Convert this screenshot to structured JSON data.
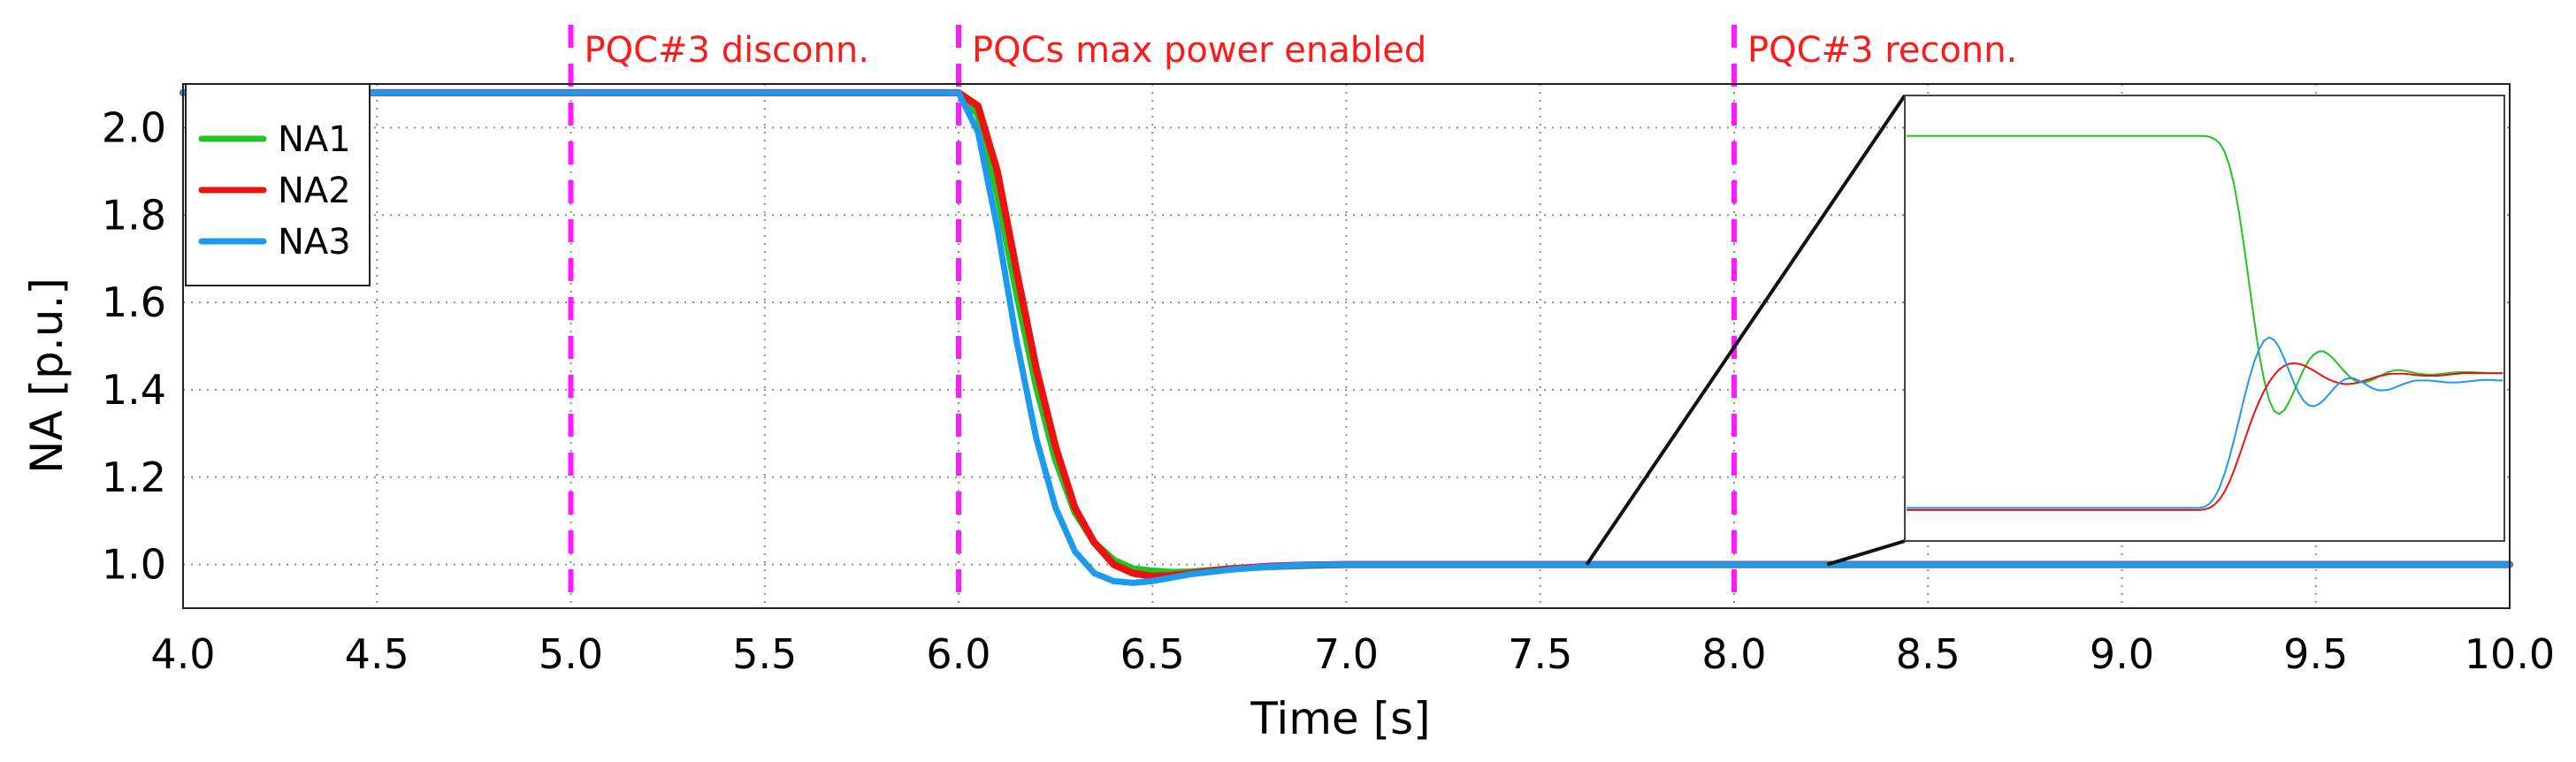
{
  "chart_data": {
    "type": "line",
    "title": "",
    "xlabel": "Time [s]",
    "ylabel": "NA [p.u.]",
    "xlim": [
      4.0,
      10.0
    ],
    "ylim": [
      0.9,
      2.1
    ],
    "x_ticks": [
      "4.0",
      "4.5",
      "5.0",
      "5.5",
      "6.0",
      "6.5",
      "7.0",
      "7.5",
      "8.0",
      "8.5",
      "9.0",
      "9.5",
      "10.0"
    ],
    "y_ticks": [
      "1.0",
      "1.2",
      "1.4",
      "1.6",
      "1.8",
      "2.0"
    ],
    "grid": true,
    "legend": {
      "position": "top-left",
      "entries": [
        "NA1",
        "NA2",
        "NA3"
      ]
    },
    "series": [
      {
        "name": "NA1",
        "color": "#22c422",
        "x": [
          4.0,
          5.0,
          6.0,
          6.05,
          6.1,
          6.15,
          6.2,
          6.25,
          6.3,
          6.35,
          6.4,
          6.45,
          6.5,
          6.55,
          6.6,
          6.7,
          6.8,
          6.9,
          7.0,
          8.0,
          9.0,
          10.0
        ],
        "values": [
          2.08,
          2.08,
          2.08,
          2.03,
          1.85,
          1.62,
          1.41,
          1.24,
          1.12,
          1.05,
          1.01,
          0.99,
          0.985,
          0.982,
          0.983,
          0.99,
          0.995,
          0.998,
          1.0,
          1.0,
          1.0,
          1.0
        ]
      },
      {
        "name": "NA2",
        "color": "#ee1111",
        "x": [
          4.0,
          5.0,
          6.0,
          6.05,
          6.1,
          6.15,
          6.2,
          6.25,
          6.3,
          6.35,
          6.4,
          6.45,
          6.5,
          6.55,
          6.6,
          6.7,
          6.8,
          6.9,
          7.0,
          8.0,
          9.0,
          10.0
        ],
        "values": [
          2.08,
          2.08,
          2.08,
          2.05,
          1.9,
          1.67,
          1.45,
          1.27,
          1.13,
          1.05,
          1.0,
          0.98,
          0.973,
          0.975,
          0.98,
          0.99,
          0.996,
          0.999,
          1.0,
          1.0,
          1.0,
          1.0
        ]
      },
      {
        "name": "NA3",
        "color": "#1b9af0",
        "x": [
          4.0,
          5.0,
          6.0,
          6.05,
          6.1,
          6.15,
          6.2,
          6.25,
          6.3,
          6.35,
          6.4,
          6.45,
          6.5,
          6.55,
          6.6,
          6.7,
          6.8,
          6.9,
          7.0,
          8.0,
          9.0,
          10.0
        ],
        "values": [
          2.08,
          2.08,
          2.08,
          1.99,
          1.77,
          1.51,
          1.29,
          1.13,
          1.03,
          0.98,
          0.962,
          0.958,
          0.962,
          0.97,
          0.978,
          0.988,
          0.995,
          0.999,
          1.0,
          1.0,
          1.0,
          1.0
        ]
      }
    ],
    "vertical_markers": [
      {
        "x": 5.0,
        "label": "PQC#3 disconn.",
        "color": "#ff1aff"
      },
      {
        "x": 6.0,
        "label": "PQCs max power enabled",
        "color": "#ff1aff"
      },
      {
        "x": 8.0,
        "label": "PQC#3 reconn.",
        "color": "#ff1aff"
      }
    ],
    "inset": {
      "description_series": [
        {
          "name": "NA1",
          "color": "#22c422",
          "values": [
            1.942,
            1.942,
            1.942,
            1.942,
            1.942,
            1.942,
            1.942,
            1.942,
            1.942,
            1.942,
            1.942,
            1.942,
            1.942,
            1.942,
            1.942,
            1.942,
            1.942,
            1.942,
            1.942,
            1.942,
            1.942,
            1.942,
            1.942,
            1.942,
            1.942,
            1.942,
            1.942,
            1.942,
            1.942,
            1.942,
            1.942,
            1.942,
            1.942,
            1.942,
            1.942,
            1.942,
            1.942,
            1.942,
            1.942,
            1.942,
            1.942,
            1.942,
            1.942,
            1.942,
            1.942,
            1.942,
            1.942,
            1.942,
            1.942,
            1.942,
            1.942,
            1.942,
            1.942,
            1.942,
            1.942,
            1.942,
            1.942,
            1.942,
            1.942,
            1.942,
            1.942,
            1.94,
            1.936,
            1.928,
            1.912,
            1.885,
            1.845,
            1.79,
            1.725,
            1.655,
            1.585,
            1.52,
            1.47,
            1.432,
            1.411,
            1.405,
            1.412,
            1.428,
            1.449,
            1.471,
            1.492,
            1.509,
            1.52,
            1.526,
            1.526,
            1.52,
            1.511,
            1.5,
            1.489,
            1.479,
            1.471,
            1.467,
            1.466,
            1.468,
            1.472,
            1.477,
            1.482,
            1.486,
            1.489,
            1.49,
            1.489,
            1.487,
            1.485,
            1.483,
            1.482,
            1.481,
            1.481,
            1.482,
            1.483,
            1.484,
            1.485,
            1.486,
            1.486,
            1.486,
            1.486,
            1.485,
            1.485,
            1.484,
            1.484,
            1.484,
            1.484
          ]
        },
        {
          "name": "NA2",
          "color": "#ee1111",
          "values": [
            1.22,
            1.22,
            1.22,
            1.22,
            1.22,
            1.22,
            1.22,
            1.22,
            1.22,
            1.22,
            1.22,
            1.22,
            1.22,
            1.22,
            1.22,
            1.22,
            1.22,
            1.22,
            1.22,
            1.22,
            1.22,
            1.22,
            1.22,
            1.22,
            1.22,
            1.22,
            1.22,
            1.22,
            1.22,
            1.22,
            1.22,
            1.22,
            1.22,
            1.22,
            1.22,
            1.22,
            1.22,
            1.22,
            1.22,
            1.22,
            1.22,
            1.22,
            1.22,
            1.22,
            1.22,
            1.22,
            1.22,
            1.22,
            1.22,
            1.22,
            1.22,
            1.22,
            1.22,
            1.22,
            1.22,
            1.22,
            1.22,
            1.22,
            1.22,
            1.22,
            1.221,
            1.224,
            1.23,
            1.24,
            1.255,
            1.274,
            1.298,
            1.325,
            1.353,
            1.381,
            1.407,
            1.43,
            1.45,
            1.467,
            1.48,
            1.491,
            1.498,
            1.502,
            1.503,
            1.502,
            1.499,
            1.494,
            1.489,
            1.483,
            1.477,
            1.472,
            1.468,
            1.465,
            1.463,
            1.463,
            1.464,
            1.466,
            1.469,
            1.472,
            1.475,
            1.478,
            1.48,
            1.482,
            1.483,
            1.483,
            1.483,
            1.482,
            1.481,
            1.48,
            1.479,
            1.479,
            1.479,
            1.479,
            1.48,
            1.481,
            1.482,
            1.483,
            1.484,
            1.484,
            1.484,
            1.484,
            1.484,
            1.484,
            1.484,
            1.484,
            1.484
          ]
        },
        {
          "name": "NA3",
          "color": "#1b9af0",
          "values": [
            1.224,
            1.224,
            1.224,
            1.224,
            1.224,
            1.224,
            1.224,
            1.224,
            1.224,
            1.224,
            1.224,
            1.224,
            1.224,
            1.224,
            1.224,
            1.224,
            1.224,
            1.224,
            1.224,
            1.224,
            1.224,
            1.224,
            1.224,
            1.224,
            1.224,
            1.224,
            1.224,
            1.224,
            1.224,
            1.224,
            1.224,
            1.224,
            1.224,
            1.224,
            1.224,
            1.224,
            1.224,
            1.224,
            1.224,
            1.224,
            1.224,
            1.224,
            1.224,
            1.224,
            1.224,
            1.224,
            1.224,
            1.224,
            1.224,
            1.224,
            1.224,
            1.224,
            1.224,
            1.224,
            1.224,
            1.224,
            1.224,
            1.224,
            1.224,
            1.224,
            1.226,
            1.232,
            1.244,
            1.263,
            1.289,
            1.321,
            1.358,
            1.397,
            1.437,
            1.474,
            1.506,
            1.531,
            1.547,
            1.553,
            1.548,
            1.534,
            1.513,
            1.489,
            1.465,
            1.445,
            1.43,
            1.422,
            1.42,
            1.424,
            1.432,
            1.443,
            1.454,
            1.464,
            1.471,
            1.474,
            1.474,
            1.47,
            1.465,
            1.459,
            1.454,
            1.451,
            1.451,
            1.452,
            1.455,
            1.459,
            1.463,
            1.466,
            1.469,
            1.47,
            1.47,
            1.47,
            1.469,
            1.468,
            1.467,
            1.466,
            1.466,
            1.466,
            1.467,
            1.468,
            1.469,
            1.47,
            1.471,
            1.471,
            1.471,
            1.47,
            1.47
          ]
        }
      ]
    }
  }
}
